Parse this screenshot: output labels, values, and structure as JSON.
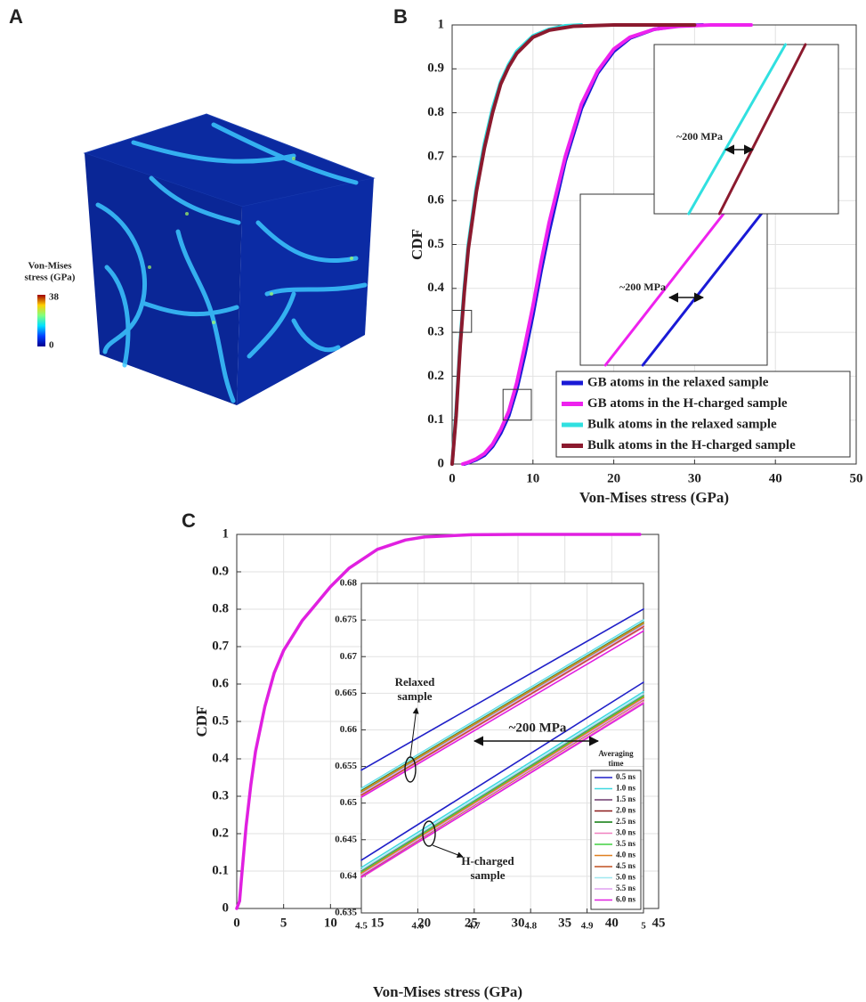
{
  "panel_labels": [
    "A",
    "B",
    "C"
  ],
  "panel_a": {
    "colorbar_title": [
      "Von-Mises",
      "stress (GPa)"
    ],
    "colorbar_max": 38,
    "colorbar_min": 0
  },
  "chart_data": [
    {
      "type": "line",
      "xlabel": "Von-Mises stress (GPa)",
      "ylabel": "CDF",
      "xlim": [
        0,
        50
      ],
      "ylim": [
        0,
        1
      ],
      "xticks": [
        0,
        10,
        20,
        30,
        40,
        50
      ],
      "yticks": [
        0,
        0.1,
        0.2,
        0.3,
        0.4,
        0.5,
        0.6,
        0.7,
        0.8,
        0.9,
        1
      ],
      "grid": true,
      "legend": "lower right",
      "series": [
        {
          "name": "GB atoms in the relaxed sample",
          "color": "#1a1ad6",
          "x": [
            1.5,
            2,
            3,
            4,
            5,
            6,
            7,
            8,
            9,
            10,
            11,
            12,
            14,
            16,
            18,
            20,
            22,
            25,
            28,
            31
          ],
          "values": [
            0,
            0.003,
            0.01,
            0.02,
            0.04,
            0.07,
            0.11,
            0.17,
            0.25,
            0.34,
            0.44,
            0.53,
            0.69,
            0.81,
            0.89,
            0.94,
            0.97,
            0.99,
            0.998,
            1
          ]
        },
        {
          "name": "GB atoms in the H-charged sample",
          "color": "#ee22ee",
          "x": [
            1.3,
            2,
            3,
            4,
            5,
            6,
            7,
            8,
            9,
            10,
            11,
            12,
            14,
            16,
            18,
            20,
            22,
            25,
            28,
            32,
            37
          ],
          "values": [
            0,
            0.004,
            0.012,
            0.024,
            0.045,
            0.078,
            0.12,
            0.185,
            0.27,
            0.36,
            0.46,
            0.55,
            0.7,
            0.82,
            0.895,
            0.945,
            0.972,
            0.99,
            0.997,
            1,
            1
          ]
        },
        {
          "name": "Bulk atoms in the relaxed sample",
          "color": "#30e0e0",
          "x": [
            0,
            0.5,
            1,
            1.5,
            2,
            3,
            4,
            5,
            6,
            7,
            8,
            10,
            12,
            14,
            16
          ],
          "values": [
            0,
            0.12,
            0.28,
            0.4,
            0.5,
            0.63,
            0.73,
            0.81,
            0.87,
            0.91,
            0.94,
            0.975,
            0.99,
            0.998,
            1
          ]
        },
        {
          "name": "Bulk atoms in the H-charged sample",
          "color": "#8b1a2e",
          "x": [
            0,
            0.5,
            1,
            1.5,
            2,
            3,
            4,
            5,
            6,
            7,
            8,
            10,
            12,
            15,
            20,
            30
          ],
          "values": [
            0,
            0.11,
            0.27,
            0.39,
            0.49,
            0.62,
            0.72,
            0.8,
            0.865,
            0.905,
            0.935,
            0.972,
            0.988,
            0.997,
            1,
            1
          ]
        }
      ],
      "insets": [
        {
          "xlim": [
            6.3,
            9.8
          ],
          "ylim": [
            0.1,
            0.17
          ],
          "annotation": "~200 MPa",
          "series": [
            {
              "color": "#ee22ee",
              "x": [
                6.77,
                9.27
              ],
              "values": [
                0.1,
                0.17
              ]
            },
            {
              "color": "#1a1ad6",
              "x": [
                7.47,
                9.8
              ],
              "values": [
                0.1,
                0.165
              ]
            }
          ]
        },
        {
          "xlim": [
            0,
            2.4
          ],
          "ylim": [
            0.3,
            0.35
          ],
          "annotation": "~200 MPa",
          "series": [
            {
              "color": "#30e0e0",
              "x": [
                0.45,
                1.71
              ],
              "values": [
                0.3,
                0.35
              ]
            },
            {
              "color": "#8b1a2e",
              "x": [
                0.85,
                1.97
              ],
              "values": [
                0.3,
                0.35
              ]
            }
          ]
        }
      ]
    },
    {
      "type": "line",
      "xlabel": "Von-Mises stress (GPa)",
      "ylabel": "CDF",
      "xlim": [
        0,
        45
      ],
      "ylim": [
        0,
        1
      ],
      "xticks": [
        0,
        5,
        10,
        15,
        20,
        25,
        30,
        35,
        40,
        45
      ],
      "yticks": [
        0,
        0.1,
        0.2,
        0.3,
        0.4,
        0.5,
        0.6,
        0.7,
        0.8,
        0.9,
        1
      ],
      "grid": true,
      "color": "#e020e0",
      "x": [
        0,
        0.3,
        0.5,
        1,
        1.5,
        2,
        3,
        4,
        5,
        6,
        7,
        8,
        10,
        12,
        15,
        18,
        20,
        25,
        30,
        35,
        40,
        43
      ],
      "values": [
        0,
        0.02,
        0.08,
        0.22,
        0.33,
        0.42,
        0.54,
        0.63,
        0.69,
        0.73,
        0.77,
        0.8,
        0.86,
        0.91,
        0.96,
        0.985,
        0.993,
        0.999,
        1,
        1,
        1,
        1
      ],
      "inset": {
        "x": [
          4.5,
          5
        ],
        "xlim": [
          4.5,
          5
        ],
        "ylim": [
          0.635,
          0.68
        ],
        "xticks": [
          4.5,
          4.6,
          4.7,
          4.8,
          4.9,
          5
        ],
        "yticks": [
          0.635,
          0.64,
          0.645,
          0.65,
          0.655,
          0.66,
          0.665,
          0.67,
          0.675,
          0.68
        ],
        "grid": true,
        "legend_title": [
          "Averaging",
          "time"
        ],
        "relaxed_label": [
          "Relaxed",
          "sample"
        ],
        "h_charged_label": [
          "H-charged",
          "sample"
        ],
        "annotation": "~200 MPa",
        "series": [
          {
            "name": "0.5 ns",
            "color": "#1f1fc8",
            "relaxed": [
              0.6545,
              0.6765
            ],
            "h_charged": [
              0.6422,
              0.6665
            ]
          },
          {
            "name": "1.0 ns",
            "color": "#3fd8e0",
            "relaxed": [
              0.652,
              0.675
            ],
            "h_charged": [
              0.6412,
              0.6652
            ]
          },
          {
            "name": "1.5 ns",
            "color": "#6e3a6e",
            "relaxed": [
              0.6515,
              0.6745
            ],
            "h_charged": [
              0.6408,
              0.6648
            ]
          },
          {
            "name": "2.0 ns",
            "color": "#8b1a1a",
            "relaxed": [
              0.6512,
              0.6742
            ],
            "h_charged": [
              0.6405,
              0.6645
            ]
          },
          {
            "name": "2.5 ns",
            "color": "#0a7a0a",
            "relaxed": [
              0.6518,
              0.6748
            ],
            "h_charged": [
              0.6403,
              0.6643
            ]
          },
          {
            "name": "3.0 ns",
            "color": "#f080c0",
            "relaxed": [
              0.651,
              0.674
            ],
            "h_charged": [
              0.6398,
              0.6638
            ]
          },
          {
            "name": "3.5 ns",
            "color": "#40d040",
            "relaxed": [
              0.6514,
              0.6744
            ],
            "h_charged": [
              0.6406,
              0.6646
            ]
          },
          {
            "name": "4.0 ns",
            "color": "#e08020",
            "relaxed": [
              0.6516,
              0.6746
            ],
            "h_charged": [
              0.6404,
              0.6644
            ]
          },
          {
            "name": "4.5 ns",
            "color": "#c05020",
            "relaxed": [
              0.6511,
              0.6741
            ],
            "h_charged": [
              0.6401,
              0.6641
            ]
          },
          {
            "name": "5.0 ns",
            "color": "#a0e8f0",
            "relaxed": [
              0.6519,
              0.6749
            ],
            "h_charged": [
              0.6409,
              0.6649
            ]
          },
          {
            "name": "5.5 ns",
            "color": "#e0a0f0",
            "relaxed": [
              0.6513,
              0.6743
            ],
            "h_charged": [
              0.6402,
              0.6642
            ]
          },
          {
            "name": "6.0 ns",
            "color": "#e020e0",
            "relaxed": [
              0.6508,
              0.6735
            ],
            "h_charged": [
              0.6399,
              0.6636
            ]
          }
        ]
      }
    }
  ]
}
